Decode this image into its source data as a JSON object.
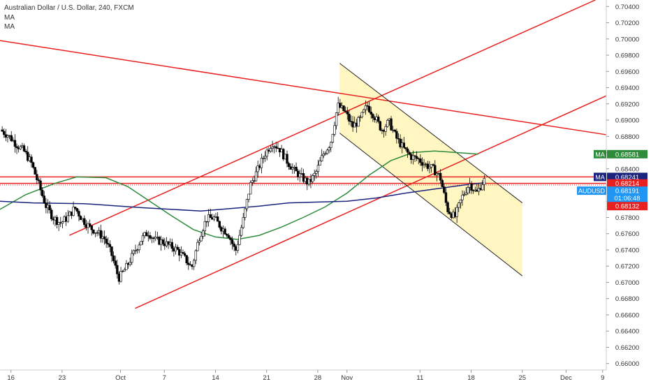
{
  "header": {
    "title": "Australian Dollar / U.S. Dollar, 240, FXCM",
    "indicators": [
      "MA",
      "MA"
    ]
  },
  "chart_data": {
    "type": "candlestick",
    "symbol": "AUDUSD",
    "x_ticks": [
      {
        "label": "16",
        "t": 0
      },
      {
        "label": "23",
        "t": 7
      },
      {
        "label": "Oct",
        "t": 15
      },
      {
        "label": "7",
        "t": 21
      },
      {
        "label": "14",
        "t": 28
      },
      {
        "label": "21",
        "t": 35
      },
      {
        "label": "28",
        "t": 42
      },
      {
        "label": "Nov",
        "t": 46
      },
      {
        "label": "11",
        "t": 56
      },
      {
        "label": "18",
        "t": 63
      },
      {
        "label": "25",
        "t": 70
      },
      {
        "label": "Dec",
        "t": 76
      },
      {
        "label": "9",
        "t": 81
      }
    ],
    "y_ticks": [
      "0.70400",
      "0.70200",
      "0.70000",
      "0.69800",
      "0.69600",
      "0.69400",
      "0.69200",
      "0.69000",
      "0.68800",
      "0.68600",
      "0.68400",
      "0.68200",
      "0.68000",
      "0.67800",
      "0.67600",
      "0.67400",
      "0.67200",
      "0.67000",
      "0.66800",
      "0.66600",
      "0.66400",
      "0.66200",
      "0.66000"
    ],
    "ylim": [
      0.6592,
      0.7048
    ],
    "xlim": [
      -1.5,
      81.5
    ],
    "price_path": [
      [
        -1.5,
        0.689
      ],
      [
        0,
        0.688
      ],
      [
        1,
        0.687
      ],
      [
        2,
        0.6862
      ],
      [
        3,
        0.6848
      ],
      [
        4,
        0.6822
      ],
      [
        5,
        0.6795
      ],
      [
        6,
        0.678
      ],
      [
        7,
        0.6773
      ],
      [
        8,
        0.678
      ],
      [
        9,
        0.6792
      ],
      [
        10,
        0.6778
      ],
      [
        11,
        0.6768
      ],
      [
        12,
        0.6762
      ],
      [
        13,
        0.6755
      ],
      [
        14,
        0.6735
      ],
      [
        15,
        0.6705
      ],
      [
        16,
        0.6718
      ],
      [
        17,
        0.6735
      ],
      [
        18,
        0.6752
      ],
      [
        19,
        0.6762
      ],
      [
        20,
        0.6752
      ],
      [
        21,
        0.675
      ],
      [
        22,
        0.6745
      ],
      [
        23,
        0.674
      ],
      [
        24,
        0.673
      ],
      [
        25,
        0.6718
      ],
      [
        26,
        0.6755
      ],
      [
        27,
        0.6778
      ],
      [
        28,
        0.678
      ],
      [
        29,
        0.6768
      ],
      [
        30,
        0.676
      ],
      [
        31,
        0.6738
      ],
      [
        32,
        0.6775
      ],
      [
        33,
        0.682
      ],
      [
        34,
        0.6838
      ],
      [
        35,
        0.6858
      ],
      [
        36,
        0.6872
      ],
      [
        37,
        0.6865
      ],
      [
        38,
        0.685
      ],
      [
        39,
        0.6838
      ],
      [
        40,
        0.683
      ],
      [
        41,
        0.6822
      ],
      [
        42,
        0.6835
      ],
      [
        43,
        0.6858
      ],
      [
        44,
        0.6872
      ],
      [
        45,
        0.6918
      ],
      [
        46,
        0.691
      ],
      [
        47,
        0.6892
      ],
      [
        48,
        0.69
      ],
      [
        49,
        0.6918
      ],
      [
        50,
        0.6905
      ],
      [
        51,
        0.6888
      ],
      [
        52,
        0.6898
      ],
      [
        53,
        0.6878
      ],
      [
        54,
        0.6865
      ],
      [
        55,
        0.6855
      ],
      [
        56,
        0.6852
      ],
      [
        57,
        0.6845
      ],
      [
        58,
        0.684
      ],
      [
        59,
        0.683
      ],
      [
        60,
        0.679
      ],
      [
        61,
        0.678
      ],
      [
        62,
        0.6805
      ],
      [
        63,
        0.6822
      ],
      [
        64,
        0.681
      ],
      [
        65,
        0.6826
      ]
    ],
    "series": [
      {
        "name": "MA",
        "color": "#2e8b3a",
        "points": [
          [
            -1.5,
            0.679
          ],
          [
            2,
            0.6808
          ],
          [
            6,
            0.6822
          ],
          [
            9,
            0.683
          ],
          [
            13,
            0.6829
          ],
          [
            16,
            0.6818
          ],
          [
            19,
            0.68
          ],
          [
            22,
            0.6782
          ],
          [
            25,
            0.6765
          ],
          [
            28,
            0.6756
          ],
          [
            31,
            0.6753
          ],
          [
            34,
            0.6758
          ],
          [
            37,
            0.6768
          ],
          [
            40,
            0.678
          ],
          [
            43,
            0.6793
          ],
          [
            46,
            0.681
          ],
          [
            49,
            0.6832
          ],
          [
            52,
            0.685
          ],
          [
            55,
            0.686
          ],
          [
            58,
            0.6862
          ],
          [
            61,
            0.686
          ],
          [
            64,
            0.6858
          ]
        ]
      },
      {
        "name": "MA",
        "color": "#1a237e",
        "points": [
          [
            -1.5,
            0.68
          ],
          [
            3,
            0.6798
          ],
          [
            10,
            0.6797
          ],
          [
            18,
            0.6792
          ],
          [
            26,
            0.6788
          ],
          [
            34,
            0.6794
          ],
          [
            38,
            0.6798
          ],
          [
            42,
            0.6799
          ],
          [
            46,
            0.68
          ],
          [
            50,
            0.6804
          ],
          [
            54,
            0.681
          ],
          [
            58,
            0.6815
          ],
          [
            62,
            0.682
          ],
          [
            65,
            0.6823
          ]
        ]
      }
    ],
    "trend_lines": [
      {
        "color": "#e8201f",
        "points": [
          [
            -1.5,
            0.6998
          ],
          [
            81.5,
            0.6882
          ]
        ]
      },
      {
        "color": "#e8201f",
        "points": [
          [
            8,
            0.6758
          ],
          [
            80,
            0.7048
          ]
        ]
      },
      {
        "color": "#e8201f",
        "points": [
          [
            17,
            0.6668
          ],
          [
            81.5,
            0.693
          ]
        ]
      },
      {
        "color": "#e8201f",
        "points": [
          [
            -1.5,
            0.683
          ],
          [
            81.5,
            0.683
          ]
        ]
      },
      {
        "color": "#e8201f",
        "points": [
          [
            -1.5,
            0.6822
          ],
          [
            81.5,
            0.6822
          ]
        ]
      },
      {
        "color": "#222222",
        "points": [
          [
            45,
            0.697
          ],
          [
            70,
            0.6798
          ]
        ]
      },
      {
        "color": "#222222",
        "points": [
          [
            45,
            0.6884
          ],
          [
            70,
            0.6708
          ]
        ]
      }
    ],
    "channel_box": {
      "color": "#fff6c2",
      "points": [
        [
          45,
          0.697
        ],
        [
          70,
          0.6798
        ],
        [
          70,
          0.6708
        ],
        [
          45,
          0.6884
        ]
      ]
    },
    "price_tags": [
      {
        "text": "MA",
        "value": "0.68581",
        "y": 0.6858,
        "bg": "#2e8b3a",
        "fg": "#ffffff"
      },
      {
        "text": "MA",
        "value": "0.68241",
        "y": 0.683,
        "bg": "#1a237e",
        "fg": "#ffffff"
      },
      {
        "text": "",
        "value": "0.68214",
        "y": 0.6822,
        "bg": "#e8201f",
        "fg": "#ffffff"
      },
      {
        "text": "AUDUSD",
        "value": "0.68191",
        "y": 0.6813,
        "bg": "#2196f3",
        "fg": "#ffffff"
      },
      {
        "text": "",
        "value": "01:06:48",
        "y": 0.6804,
        "bg": "#2196f3",
        "fg": "#ffffff"
      },
      {
        "text": "",
        "value": "0.68132",
        "y": 0.6794,
        "bg": "#e8201f",
        "fg": "#ffffff"
      }
    ],
    "grid": false
  }
}
